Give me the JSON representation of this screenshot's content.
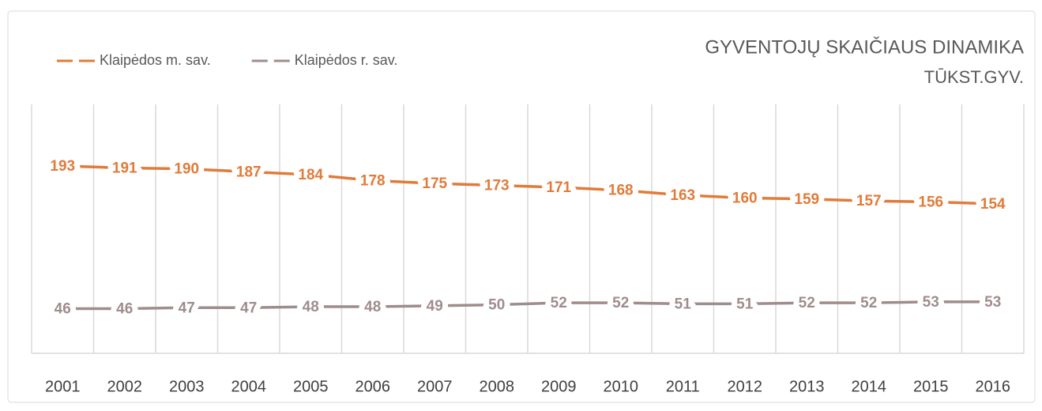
{
  "chart_data": {
    "type": "line",
    "title": "GYVENTOJŲ SKAIČIAUS  DINAMIKA",
    "subtitle": "TŪKST.GYV.",
    "categories": [
      "2001",
      "2002",
      "2003",
      "2004",
      "2005",
      "2006",
      "2007",
      "2008",
      "2009",
      "2010",
      "2011",
      "2012",
      "2013",
      "2014",
      "2015",
      "2016"
    ],
    "series": [
      {
        "name": "Klaipėdos m. sav.",
        "color": "#e07b39",
        "values": [
          193,
          191,
          190,
          187,
          184,
          178,
          175,
          173,
          171,
          168,
          163,
          160,
          159,
          157,
          156,
          154
        ]
      },
      {
        "name": "Klaipėdos r. sav.",
        "color": "#a08c8c",
        "values": [
          46,
          46,
          47,
          47,
          48,
          48,
          49,
          50,
          52,
          52,
          51,
          51,
          52,
          52,
          53,
          53
        ]
      }
    ],
    "ylim": [
      0,
      250
    ],
    "grid": true,
    "legend": "top-left"
  }
}
